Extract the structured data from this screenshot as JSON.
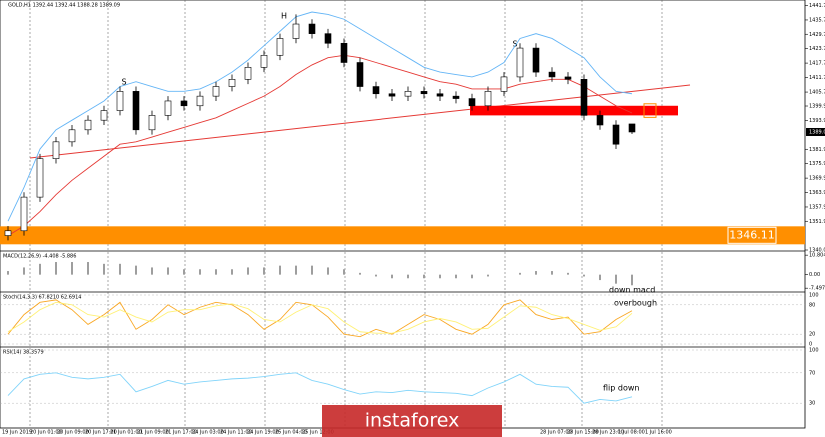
{
  "chart_data": {
    "type": "candlestick",
    "subtitle": "GOLD,H1 1392.44 1392.44 1388.28 1389.09",
    "open": [
      1346,
      1348,
      1362,
      1378,
      1385,
      1390,
      1394,
      1398,
      1406,
      1390,
      1396,
      1402,
      1400,
      1404,
      1408,
      1411,
      1416,
      1421,
      1428,
      1434,
      1430,
      1426,
      1418,
      1408,
      1405,
      1404,
      1406,
      1405,
      1404,
      1403,
      1400,
      1406,
      1412,
      1424,
      1414,
      1412,
      1411,
      1396,
      1392,
      1392.44
    ],
    "high": [
      1350,
      1364,
      1380,
      1387,
      1392,
      1396,
      1400,
      1408,
      1408,
      1398,
      1404,
      1404,
      1406,
      1410,
      1413,
      1418,
      1423,
      1430,
      1438,
      1436,
      1432,
      1428,
      1420,
      1410,
      1407,
      1408,
      1408,
      1407,
      1406,
      1405,
      1408,
      1414,
      1426,
      1426,
      1416,
      1414,
      1413,
      1398,
      1394,
      1392.44
    ],
    "low": [
      1344,
      1346,
      1360,
      1376,
      1383,
      1388,
      1392,
      1396,
      1388,
      1388,
      1394,
      1398,
      1398,
      1402,
      1406,
      1409,
      1414,
      1419,
      1426,
      1428,
      1424,
      1416,
      1406,
      1403,
      1402,
      1402,
      1403,
      1402,
      1401,
      1398,
      1398,
      1404,
      1410,
      1412,
      1410,
      1409,
      1394,
      1390,
      1382,
      1388.28
    ],
    "close": [
      1348,
      1362,
      1378,
      1385,
      1390,
      1394,
      1398,
      1406,
      1390,
      1396,
      1402,
      1400,
      1404,
      1408,
      1411,
      1416,
      1421,
      1428,
      1434,
      1430,
      1426,
      1418,
      1408,
      1405,
      1404,
      1406,
      1405,
      1404,
      1403,
      1400,
      1406,
      1412,
      1424,
      1414,
      1412,
      1411,
      1396,
      1392,
      1384,
      1389.09
    ],
    "series": [
      {
        "color": "#e53935",
        "values": [
          1346,
          1350,
          1356,
          1363,
          1369,
          1374,
          1379,
          1384,
          1385,
          1387,
          1389,
          1391,
          1393,
          1395,
          1398,
          1401,
          1404,
          1408,
          1413,
          1417,
          1420,
          1421,
          1420,
          1418,
          1416,
          1414,
          1412,
          1410,
          1409,
          1407,
          1407,
          1407,
          1409,
          1410,
          1411,
          1411,
          1408,
          1404,
          1400,
          1397
        ]
      },
      {
        "color": "#64b5f6",
        "values": [
          1352,
          1366,
          1382,
          1390,
          1394,
          1398,
          1402,
          1408,
          1410,
          1408,
          1406,
          1406,
          1407,
          1410,
          1414,
          1419,
          1425,
          1431,
          1437,
          1439,
          1438,
          1436,
          1432,
          1428,
          1424,
          1420,
          1416,
          1414,
          1413,
          1412,
          1414,
          1418,
          1428,
          1430,
          1428,
          1424,
          1420,
          1412,
          1406,
          1405
        ]
      }
    ],
    "ylim": [
      1340,
      1444
    ],
    "yticks": [
      {
        "value": 1441.7,
        "label": "1441.70"
      },
      {
        "value": 1435.7,
        "label": "1435.70"
      },
      1429.75,
      1423.75,
      1417.75,
      1411.75,
      {
        "value": 1405.7,
        "label": "1405.70"
      },
      {
        "value": 1399.9,
        "label": "1399.90"
      },
      {
        "value": 1393.9,
        "label": "1393.90"
      },
      {
        "value": 1381.9,
        "label": "1381.90"
      },
      {
        "value": 1375.9,
        "label": "1375.90"
      },
      {
        "value": 1369.9,
        "label": "1369.90"
      },
      {
        "value": 1363.9,
        "label": "1363.90"
      },
      {
        "value": 1357.9,
        "label": "1357.90"
      },
      1351.95,
      {
        "value": 1340,
        "label": "1340.00"
      }
    ],
    "resistance_zone": [
      1396,
      1400
    ],
    "support_level": 1346.11,
    "x_labels": [
      "19 Jun 2019",
      "20 Jun 01:00",
      "20 Jun 09:00",
      "20 Jun 17:00",
      "21 Jun 01:00",
      "21 Jun 09:00",
      "21 Jun 17:00",
      "24 Jun 03:00",
      "24 Jun 11:00",
      "24 Jun 19:00",
      "25 Jun 04:00",
      "25 Jun 12:00",
      "28 Jun 07:00",
      "28 Jun 15:00",
      "28 Jun 23:00",
      "1 Jul 08:00",
      "1 Jul 16:00"
    ],
    "annotations": [
      "H",
      "S",
      "S",
      "down macd",
      "overbough",
      "flip down"
    ],
    "watermark": "instaforex",
    "macd": {
      "title": "MACD(12,26,9) -4.408 -5.886",
      "color": "#9e9e9e",
      "ylim": [
        -8.5,
        12
      ],
      "yticks": [
        10.804,
        {
          "value": 0,
          "label": "0.00"
        },
        -7.497
      ],
      "values": [
        2,
        4,
        6,
        7,
        7,
        7,
        6,
        6,
        5,
        4,
        4,
        3,
        3,
        3,
        3,
        4,
        4,
        5,
        5,
        5,
        4,
        3,
        1,
        -1,
        -2,
        -2,
        -2,
        -2,
        -2,
        -2,
        -1,
        0,
        1,
        2,
        2,
        1,
        -1,
        -3,
        -5,
        -5.886
      ]
    },
    "stoch": {
      "title": "Stoch(14,3,3) 67.8210 62.6914",
      "ylim": [
        0,
        100
      ],
      "yticks": [
        100,
        80,
        20,
        0
      ],
      "series": [
        {
          "color": "#f9a825",
          "values": [
            20,
            60,
            85,
            90,
            70,
            40,
            60,
            85,
            30,
            50,
            80,
            60,
            75,
            85,
            80,
            60,
            30,
            50,
            85,
            80,
            55,
            20,
            15,
            30,
            20,
            40,
            60,
            50,
            30,
            20,
            40,
            80,
            90,
            60,
            50,
            55,
            20,
            25,
            50,
            67.82
          ]
        },
        {
          "color": "#fff176",
          "values": [
            25,
            45,
            70,
            85,
            80,
            60,
            55,
            70,
            55,
            45,
            65,
            70,
            70,
            78,
            82,
            72,
            50,
            45,
            65,
            80,
            72,
            45,
            25,
            22,
            22,
            30,
            45,
            52,
            45,
            30,
            32,
            55,
            78,
            75,
            60,
            52,
            40,
            28,
            35,
            62.69
          ]
        }
      ]
    },
    "rsi": {
      "title": "RSI(14) 38.3579",
      "color": "#81d4fa",
      "ylim": [
        0,
        100
      ],
      "yticks": [
        100,
        70,
        30
      ],
      "values": [
        40,
        62,
        68,
        70,
        64,
        62,
        64,
        68,
        45,
        52,
        60,
        55,
        58,
        60,
        62,
        63,
        65,
        68,
        70,
        60,
        55,
        48,
        42,
        45,
        44,
        47,
        45,
        44,
        43,
        40,
        50,
        58,
        68,
        55,
        52,
        51,
        30,
        35,
        33,
        38.36
      ]
    }
  }
}
